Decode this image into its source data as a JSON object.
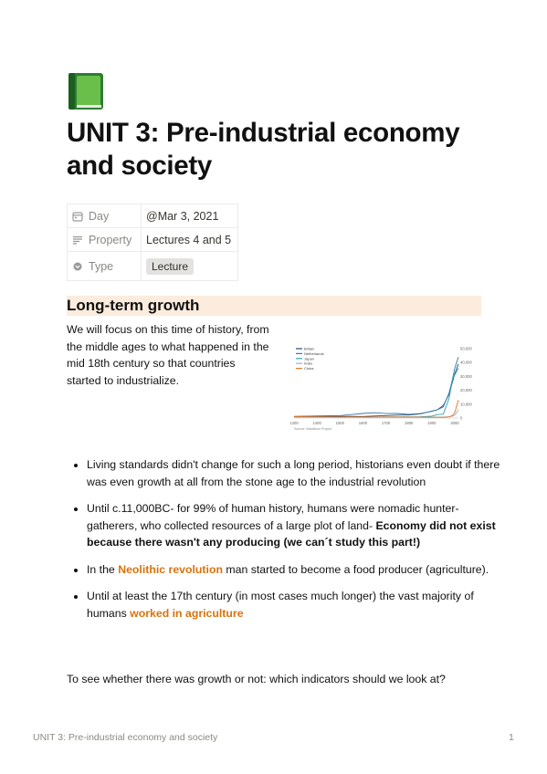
{
  "page": {
    "icon": "green-book-icon",
    "title": "UNIT 3: Pre-industrial economy and society"
  },
  "properties": [
    {
      "icon": "calendar-icon",
      "name": "Day",
      "value": "@Mar 3, 2021"
    },
    {
      "icon": "text-lines-icon",
      "name": "Property",
      "value": "Lectures 4 and 5"
    },
    {
      "icon": "select-circle-icon",
      "name": "Type",
      "value": "Lecture"
    }
  ],
  "section": {
    "heading": "Long-term growth",
    "intro": "We will focus on this time of history, from the middle ages to what happened in the mid 18th century so that countries started to industrialize."
  },
  "bullets": [
    {
      "parts": [
        {
          "t": "Living standards didn't change for such a long period, historians even doubt if there was even growth at all from the stone age to the industrial revolution",
          "s": "n"
        }
      ]
    },
    {
      "parts": [
        {
          "t": "Until c.11,000BC- for 99% of human history, humans were nomadic hunter-gatherers, who collected resources of a large plot of land- ",
          "s": "n"
        },
        {
          "t": "Economy did not exist because there wasn't any producing (we can´t study this part!)",
          "s": "b"
        }
      ]
    },
    {
      "parts": [
        {
          "t": "In the ",
          "s": "n"
        },
        {
          "t": "Neolithic revolution",
          "s": "h"
        },
        {
          "t": " man started to become a food producer (agriculture).",
          "s": "n"
        }
      ]
    },
    {
      "parts": [
        {
          "t": "Until at least the 17th century (in most cases much longer) the vast majority of humans ",
          "s": "n"
        },
        {
          "t": "worked in agriculture",
          "s": "h"
        }
      ]
    }
  ],
  "closing": "To see whether there was growth or not: which indicators should we look at?",
  "footer": {
    "title": "UNIT 3: Pre-industrial economy and society",
    "page": "1"
  },
  "chart_data": {
    "type": "line",
    "title": "",
    "xlabel": "",
    "ylabel": "",
    "source": "Source: Maddison Project",
    "x_ticks": [
      "1300",
      "1400",
      "1500",
      "1600",
      "1700",
      "1800",
      "1900",
      "2000"
    ],
    "y_ticks": [
      "0",
      "10,000",
      "20,000",
      "30,000",
      "40,000",
      "50,000"
    ],
    "xlim": [
      1300,
      2016
    ],
    "ylim": [
      0,
      52000
    ],
    "grid": false,
    "legend_position": "top-left",
    "series": [
      {
        "name": "Britain",
        "color": "#1f4e79",
        "x": [
          1300,
          1400,
          1500,
          1600,
          1700,
          1750,
          1800,
          1850,
          1900,
          1925,
          1950,
          1975,
          1990,
          2000,
          2016
        ],
        "y": [
          1100,
          1300,
          1200,
          1150,
          1750,
          2100,
          2200,
          3000,
          5000,
          6000,
          9000,
          17000,
          26000,
          32000,
          39000
        ]
      },
      {
        "name": "Netherlands",
        "color": "#3a78a8",
        "x": [
          1300,
          1400,
          1500,
          1550,
          1600,
          1650,
          1700,
          1750,
          1800,
          1850,
          1900,
          1925,
          1950,
          1975,
          1990,
          2000,
          2016
        ],
        "y": [
          1100,
          1500,
          1800,
          2500,
          3300,
          3800,
          3200,
          3300,
          2600,
          3200,
          4800,
          6000,
          8000,
          18000,
          28000,
          36000,
          44000
        ]
      },
      {
        "name": "Japan",
        "color": "#2ea3b8",
        "x": [
          1300,
          1400,
          1500,
          1600,
          1700,
          1800,
          1850,
          1900,
          1925,
          1950,
          1975,
          1990,
          2000,
          2016
        ],
        "y": [
          600,
          650,
          700,
          750,
          800,
          850,
          900,
          1400,
          2500,
          2800,
          14000,
          28000,
          31000,
          36000
        ]
      },
      {
        "name": "India",
        "color": "#8fb4c9",
        "x": [
          1300,
          1400,
          1500,
          1600,
          1700,
          1800,
          1850,
          1900,
          1950,
          1975,
          1990,
          2000,
          2016
        ],
        "y": [
          650,
          650,
          650,
          650,
          650,
          600,
          600,
          650,
          700,
          900,
          1400,
          2000,
          6000
        ]
      },
      {
        "name": "China",
        "color": "#e8731a",
        "x": [
          1300,
          1400,
          1500,
          1600,
          1700,
          1800,
          1850,
          1900,
          1950,
          1975,
          1990,
          2000,
          2016
        ],
        "y": [
          900,
          850,
          800,
          800,
          700,
          650,
          600,
          550,
          500,
          800,
          1800,
          4000,
          13000
        ]
      }
    ]
  }
}
